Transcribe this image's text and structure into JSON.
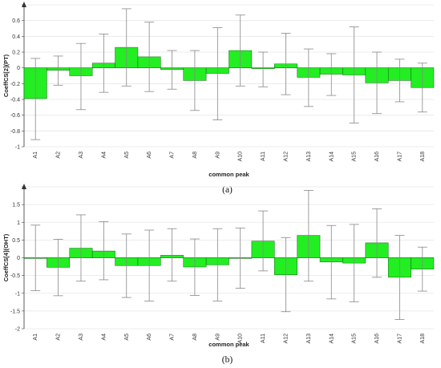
{
  "chart_data": [
    {
      "type": "bar",
      "panel_label": "(a)",
      "xlabel": "common peak",
      "ylabel": "CoeffCS[2](PT)",
      "ylim": [
        -1,
        0.8
      ],
      "yticks": [
        -1,
        -0.8,
        -0.6,
        -0.4,
        -0.2,
        0,
        0.2,
        0.4,
        0.6,
        0.8
      ],
      "ytick_labels": [
        "-1",
        "-0.8",
        "-0.6",
        "-0.4",
        "-0.2",
        "0",
        "0.2",
        "0.4",
        "0.6",
        ""
      ],
      "grid": true,
      "categories": [
        "A1",
        "A2",
        "A3",
        "A4",
        "A5",
        "A6",
        "A7",
        "A8",
        "A9",
        "A10",
        "A11",
        "A12",
        "A13",
        "A14",
        "A15",
        "A16",
        "A17",
        "A18"
      ],
      "values": [
        -0.39,
        -0.03,
        -0.1,
        0.06,
        0.26,
        0.14,
        -0.02,
        -0.16,
        -0.07,
        0.22,
        -0.01,
        0.05,
        -0.12,
        -0.08,
        -0.09,
        -0.19,
        -0.16,
        -0.25
      ],
      "error_low": [
        -0.91,
        -0.22,
        -0.53,
        -0.31,
        -0.23,
        -0.3,
        -0.27,
        -0.54,
        -0.66,
        -0.23,
        -0.24,
        -0.34,
        -0.49,
        -0.35,
        -0.7,
        -0.58,
        -0.43,
        -0.56
      ],
      "error_high": [
        0.12,
        0.15,
        0.31,
        0.43,
        0.75,
        0.58,
        0.22,
        0.22,
        0.51,
        0.67,
        0.2,
        0.44,
        0.24,
        0.18,
        0.52,
        0.2,
        0.11,
        0.06
      ],
      "bar_color": "#22ee22",
      "bar_edge": "#116611",
      "error_color": "#888888",
      "grid_color": "#e6e6e6"
    },
    {
      "type": "bar",
      "panel_label": "(b)",
      "xlabel": "common peak",
      "ylabel": "CoeffCS[4](OHT)",
      "ylim": [
        -2,
        2
      ],
      "yticks": [
        -2,
        -1.5,
        -1,
        -0.5,
        0,
        0.5,
        1,
        1.5,
        2
      ],
      "ytick_labels": [
        "-2",
        "-1.5",
        "-1",
        "-0.5",
        "0",
        "0.5",
        "1",
        "1.5",
        ""
      ],
      "grid": true,
      "categories": [
        "A1",
        "A2",
        "A3",
        "A4",
        "A5",
        "A6",
        "A7",
        "A8",
        "A9",
        "A10",
        "A11",
        "A12",
        "A13",
        "A14",
        "A15",
        "A16",
        "A17",
        "A18"
      ],
      "values": [
        0.0,
        -0.27,
        0.27,
        0.19,
        -0.22,
        -0.22,
        0.07,
        -0.26,
        -0.2,
        0.0,
        0.47,
        -0.48,
        0.63,
        -0.12,
        -0.15,
        0.42,
        -0.55,
        -0.32
      ],
      "error_low": [
        -0.93,
        -1.07,
        -0.66,
        -0.62,
        -1.12,
        -1.22,
        -0.66,
        -1.06,
        -1.22,
        -0.86,
        -0.37,
        -1.52,
        -0.66,
        -1.16,
        -1.24,
        -0.55,
        -1.74,
        -0.94
      ],
      "error_high": [
        0.92,
        0.52,
        1.21,
        1.02,
        0.67,
        0.78,
        0.82,
        0.53,
        0.82,
        0.84,
        1.32,
        0.57,
        1.9,
        0.91,
        0.94,
        1.38,
        0.63,
        0.3
      ],
      "bar_color": "#22ee22",
      "bar_edge": "#116611",
      "error_color": "#888888",
      "grid_color": "#e6e6e6"
    }
  ]
}
